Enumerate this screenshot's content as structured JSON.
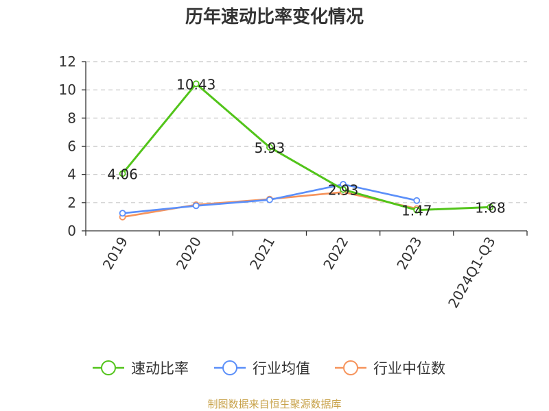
{
  "source": "制图数据来自恒生聚源数据库",
  "chart_data": {
    "type": "line",
    "title": "历年速动比率变化情况",
    "xlabel": "",
    "ylabel": "",
    "categories": [
      "2019",
      "2020",
      "2021",
      "2022",
      "2023",
      "2024Q1-Q3"
    ],
    "ylim": [
      0,
      12
    ],
    "yticks": [
      0,
      2,
      4,
      6,
      8,
      10,
      12
    ],
    "grid": true,
    "legend_position": "bottom",
    "series": [
      {
        "name": "速动比率",
        "color": "#52c41a",
        "values": [
          4.06,
          10.43,
          5.93,
          2.93,
          1.47,
          1.68
        ],
        "labels": [
          "4.06",
          "10.43",
          "5.93",
          "2.93",
          "1.47",
          "1.68"
        ]
      },
      {
        "name": "行业均值",
        "color": "#5b8ff9",
        "values": [
          1.25,
          1.78,
          2.2,
          3.3,
          2.15,
          null
        ]
      },
      {
        "name": "行业中位数",
        "color": "#f6935b",
        "values": [
          0.98,
          1.85,
          2.25,
          2.75,
          1.58,
          null
        ]
      }
    ]
  }
}
